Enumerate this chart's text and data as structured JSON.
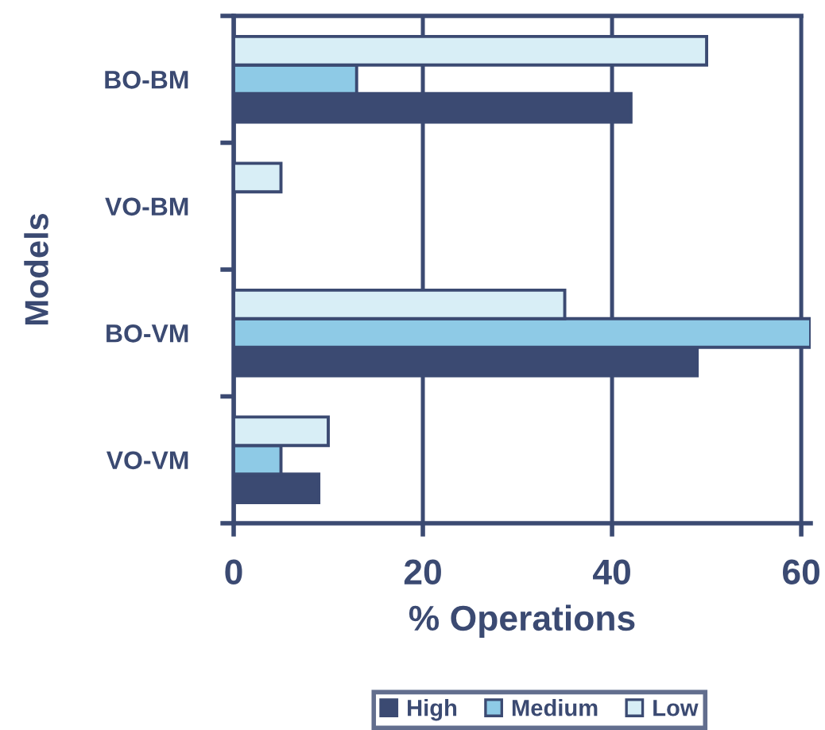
{
  "chart_data": {
    "type": "bar",
    "orientation": "horizontal",
    "xlabel": "% Operations",
    "ylabel": "Models",
    "categories": [
      "BO-BM",
      "VO-BM",
      "BO-VM",
      "VO-VM"
    ],
    "series": [
      {
        "name": "High",
        "color": "#3b4a72",
        "values": [
          42,
          null,
          49,
          9
        ]
      },
      {
        "name": "Medium",
        "color": "#8ecae6",
        "values": [
          13,
          null,
          61,
          5
        ]
      },
      {
        "name": "Low",
        "color": "#d8eef6",
        "values": [
          50,
          5,
          35,
          10
        ]
      }
    ],
    "xlim": [
      0,
      61
    ],
    "xticks": [
      0,
      20,
      40,
      60
    ],
    "grid": "x",
    "legend": "bottom"
  }
}
